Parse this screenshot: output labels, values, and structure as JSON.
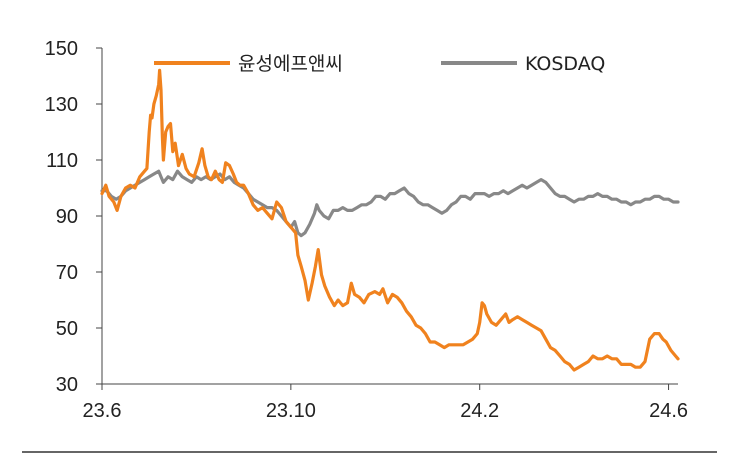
{
  "chart_data": {
    "type": "line",
    "title": "",
    "xlabel": "",
    "ylabel": "",
    "ylim": [
      30,
      150
    ],
    "yticks": [
      30,
      50,
      70,
      90,
      110,
      130,
      150
    ],
    "xticks": [
      {
        "x": 0,
        "label": "23.6"
      },
      {
        "x": 4,
        "label": "23.10"
      },
      {
        "x": 8,
        "label": "24.2"
      },
      {
        "x": 12,
        "label": "24.6"
      }
    ],
    "xlim": [
      0,
      12.2
    ],
    "legend": "top",
    "grid": false,
    "series": [
      {
        "name": "윤성에프앤씨",
        "color": "#f0821e",
        "points": [
          [
            0.0,
            98
          ],
          [
            0.08,
            101
          ],
          [
            0.15,
            97
          ],
          [
            0.25,
            95
          ],
          [
            0.32,
            92
          ],
          [
            0.4,
            97
          ],
          [
            0.5,
            100
          ],
          [
            0.6,
            101
          ],
          [
            0.7,
            100
          ],
          [
            0.8,
            104
          ],
          [
            0.9,
            106
          ],
          [
            0.95,
            107
          ],
          [
            1.0,
            120
          ],
          [
            1.03,
            126
          ],
          [
            1.06,
            125
          ],
          [
            1.1,
            130
          ],
          [
            1.15,
            133
          ],
          [
            1.2,
            137
          ],
          [
            1.22,
            142
          ],
          [
            1.25,
            135
          ],
          [
            1.28,
            118
          ],
          [
            1.3,
            110
          ],
          [
            1.35,
            120
          ],
          [
            1.4,
            122
          ],
          [
            1.45,
            123
          ],
          [
            1.5,
            113
          ],
          [
            1.55,
            116
          ],
          [
            1.62,
            108
          ],
          [
            1.7,
            112
          ],
          [
            1.78,
            107
          ],
          [
            1.85,
            105
          ],
          [
            1.95,
            104
          ],
          [
            2.05,
            109
          ],
          [
            2.12,
            114
          ],
          [
            2.18,
            108
          ],
          [
            2.25,
            104
          ],
          [
            2.32,
            103
          ],
          [
            2.4,
            106
          ],
          [
            2.48,
            103
          ],
          [
            2.55,
            102
          ],
          [
            2.62,
            109
          ],
          [
            2.7,
            108
          ],
          [
            2.78,
            105
          ],
          [
            2.85,
            102
          ],
          [
            2.92,
            101
          ],
          [
            3.0,
            101
          ],
          [
            3.1,
            98
          ],
          [
            3.2,
            94
          ],
          [
            3.3,
            92
          ],
          [
            3.4,
            93
          ],
          [
            3.5,
            91
          ],
          [
            3.6,
            89
          ],
          [
            3.7,
            95
          ],
          [
            3.8,
            93
          ],
          [
            3.9,
            88
          ],
          [
            4.0,
            86
          ],
          [
            4.1,
            84
          ],
          [
            4.15,
            76
          ],
          [
            4.22,
            72
          ],
          [
            4.3,
            67
          ],
          [
            4.37,
            60
          ],
          [
            4.45,
            66
          ],
          [
            4.52,
            72
          ],
          [
            4.58,
            78
          ],
          [
            4.65,
            69
          ],
          [
            4.72,
            65
          ],
          [
            4.82,
            61
          ],
          [
            4.92,
            58
          ],
          [
            5.0,
            60
          ],
          [
            5.1,
            58
          ],
          [
            5.2,
            59
          ],
          [
            5.28,
            66
          ],
          [
            5.35,
            62
          ],
          [
            5.45,
            61
          ],
          [
            5.55,
            59
          ],
          [
            5.65,
            62
          ],
          [
            5.78,
            63
          ],
          [
            5.88,
            62
          ],
          [
            5.95,
            64
          ],
          [
            6.05,
            59
          ],
          [
            6.15,
            62
          ],
          [
            6.25,
            61
          ],
          [
            6.35,
            59
          ],
          [
            6.45,
            56
          ],
          [
            6.55,
            54
          ],
          [
            6.65,
            51
          ],
          [
            6.75,
            50
          ],
          [
            6.85,
            48
          ],
          [
            6.95,
            45
          ],
          [
            7.05,
            45
          ],
          [
            7.15,
            44
          ],
          [
            7.25,
            43
          ],
          [
            7.35,
            44
          ],
          [
            7.45,
            44
          ],
          [
            7.55,
            44
          ],
          [
            7.65,
            44
          ],
          [
            7.75,
            45
          ],
          [
            7.85,
            46
          ],
          [
            7.95,
            48
          ],
          [
            8.0,
            52
          ],
          [
            8.05,
            59
          ],
          [
            8.1,
            58
          ],
          [
            8.15,
            55
          ],
          [
            8.25,
            52
          ],
          [
            8.35,
            51
          ],
          [
            8.45,
            53
          ],
          [
            8.55,
            55
          ],
          [
            8.62,
            52
          ],
          [
            8.7,
            53
          ],
          [
            8.8,
            54
          ],
          [
            8.9,
            53
          ],
          [
            9.0,
            52
          ],
          [
            9.1,
            51
          ],
          [
            9.2,
            50
          ],
          [
            9.3,
            49
          ],
          [
            9.4,
            46
          ],
          [
            9.5,
            43
          ],
          [
            9.6,
            42
          ],
          [
            9.7,
            40
          ],
          [
            9.8,
            38
          ],
          [
            9.9,
            37
          ],
          [
            10.0,
            35
          ],
          [
            10.1,
            36
          ],
          [
            10.2,
            37
          ],
          [
            10.3,
            38
          ],
          [
            10.4,
            40
          ],
          [
            10.5,
            39
          ],
          [
            10.6,
            39
          ],
          [
            10.7,
            40
          ],
          [
            10.8,
            39
          ],
          [
            10.9,
            39
          ],
          [
            11.0,
            37
          ],
          [
            11.1,
            37
          ],
          [
            11.2,
            37
          ],
          [
            11.3,
            36
          ],
          [
            11.4,
            36
          ],
          [
            11.5,
            38
          ],
          [
            11.6,
            46
          ],
          [
            11.7,
            48
          ],
          [
            11.8,
            48
          ],
          [
            11.88,
            46
          ],
          [
            11.95,
            45
          ],
          [
            12.05,
            42
          ],
          [
            12.15,
            40
          ],
          [
            12.2,
            39
          ]
        ]
      },
      {
        "name": "KOSDAQ",
        "color": "#888888",
        "points": [
          [
            0.0,
            99
          ],
          [
            0.1,
            99
          ],
          [
            0.2,
            97
          ],
          [
            0.3,
            96
          ],
          [
            0.4,
            97
          ],
          [
            0.5,
            99
          ],
          [
            0.6,
            100
          ],
          [
            0.7,
            101
          ],
          [
            0.8,
            102
          ],
          [
            0.9,
            103
          ],
          [
            1.0,
            104
          ],
          [
            1.1,
            105
          ],
          [
            1.2,
            106
          ],
          [
            1.25,
            104
          ],
          [
            1.3,
            102
          ],
          [
            1.4,
            104
          ],
          [
            1.5,
            103
          ],
          [
            1.6,
            106
          ],
          [
            1.7,
            104
          ],
          [
            1.8,
            103
          ],
          [
            1.9,
            102
          ],
          [
            2.0,
            104
          ],
          [
            2.1,
            103
          ],
          [
            2.2,
            104
          ],
          [
            2.3,
            103
          ],
          [
            2.4,
            104
          ],
          [
            2.5,
            105
          ],
          [
            2.6,
            103
          ],
          [
            2.7,
            104
          ],
          [
            2.8,
            102
          ],
          [
            2.9,
            101
          ],
          [
            3.0,
            100
          ],
          [
            3.1,
            98
          ],
          [
            3.2,
            96
          ],
          [
            3.3,
            95
          ],
          [
            3.4,
            94
          ],
          [
            3.5,
            93
          ],
          [
            3.6,
            93
          ],
          [
            3.7,
            92
          ],
          [
            3.8,
            90
          ],
          [
            3.9,
            88
          ],
          [
            4.0,
            86
          ],
          [
            4.08,
            88
          ],
          [
            4.15,
            84
          ],
          [
            4.22,
            83
          ],
          [
            4.3,
            84
          ],
          [
            4.4,
            87
          ],
          [
            4.5,
            91
          ],
          [
            4.55,
            94
          ],
          [
            4.6,
            92
          ],
          [
            4.7,
            90
          ],
          [
            4.8,
            89
          ],
          [
            4.9,
            92
          ],
          [
            5.0,
            92
          ],
          [
            5.1,
            93
          ],
          [
            5.2,
            92
          ],
          [
            5.3,
            92
          ],
          [
            5.4,
            93
          ],
          [
            5.5,
            94
          ],
          [
            5.6,
            94
          ],
          [
            5.7,
            95
          ],
          [
            5.8,
            97
          ],
          [
            5.9,
            97
          ],
          [
            6.0,
            96
          ],
          [
            6.1,
            98
          ],
          [
            6.2,
            98
          ],
          [
            6.3,
            99
          ],
          [
            6.4,
            100
          ],
          [
            6.5,
            98
          ],
          [
            6.6,
            97
          ],
          [
            6.7,
            95
          ],
          [
            6.8,
            94
          ],
          [
            6.9,
            94
          ],
          [
            7.0,
            93
          ],
          [
            7.1,
            92
          ],
          [
            7.2,
            91
          ],
          [
            7.3,
            92
          ],
          [
            7.4,
            94
          ],
          [
            7.5,
            95
          ],
          [
            7.6,
            97
          ],
          [
            7.7,
            97
          ],
          [
            7.8,
            96
          ],
          [
            7.9,
            98
          ],
          [
            8.0,
            98
          ],
          [
            8.1,
            98
          ],
          [
            8.2,
            97
          ],
          [
            8.3,
            98
          ],
          [
            8.4,
            98
          ],
          [
            8.5,
            99
          ],
          [
            8.6,
            98
          ],
          [
            8.7,
            99
          ],
          [
            8.8,
            100
          ],
          [
            8.9,
            101
          ],
          [
            9.0,
            100
          ],
          [
            9.1,
            101
          ],
          [
            9.2,
            102
          ],
          [
            9.3,
            103
          ],
          [
            9.4,
            102
          ],
          [
            9.5,
            100
          ],
          [
            9.6,
            98
          ],
          [
            9.7,
            97
          ],
          [
            9.8,
            97
          ],
          [
            9.9,
            96
          ],
          [
            10.0,
            95
          ],
          [
            10.1,
            96
          ],
          [
            10.2,
            96
          ],
          [
            10.3,
            97
          ],
          [
            10.4,
            97
          ],
          [
            10.5,
            98
          ],
          [
            10.6,
            97
          ],
          [
            10.7,
            97
          ],
          [
            10.8,
            96
          ],
          [
            10.9,
            96
          ],
          [
            11.0,
            95
          ],
          [
            11.1,
            95
          ],
          [
            11.2,
            94
          ],
          [
            11.3,
            95
          ],
          [
            11.4,
            95
          ],
          [
            11.5,
            96
          ],
          [
            11.6,
            96
          ],
          [
            11.7,
            97
          ],
          [
            11.8,
            97
          ],
          [
            11.9,
            96
          ],
          [
            12.0,
            96
          ],
          [
            12.1,
            95
          ],
          [
            12.2,
            95
          ]
        ]
      }
    ]
  }
}
